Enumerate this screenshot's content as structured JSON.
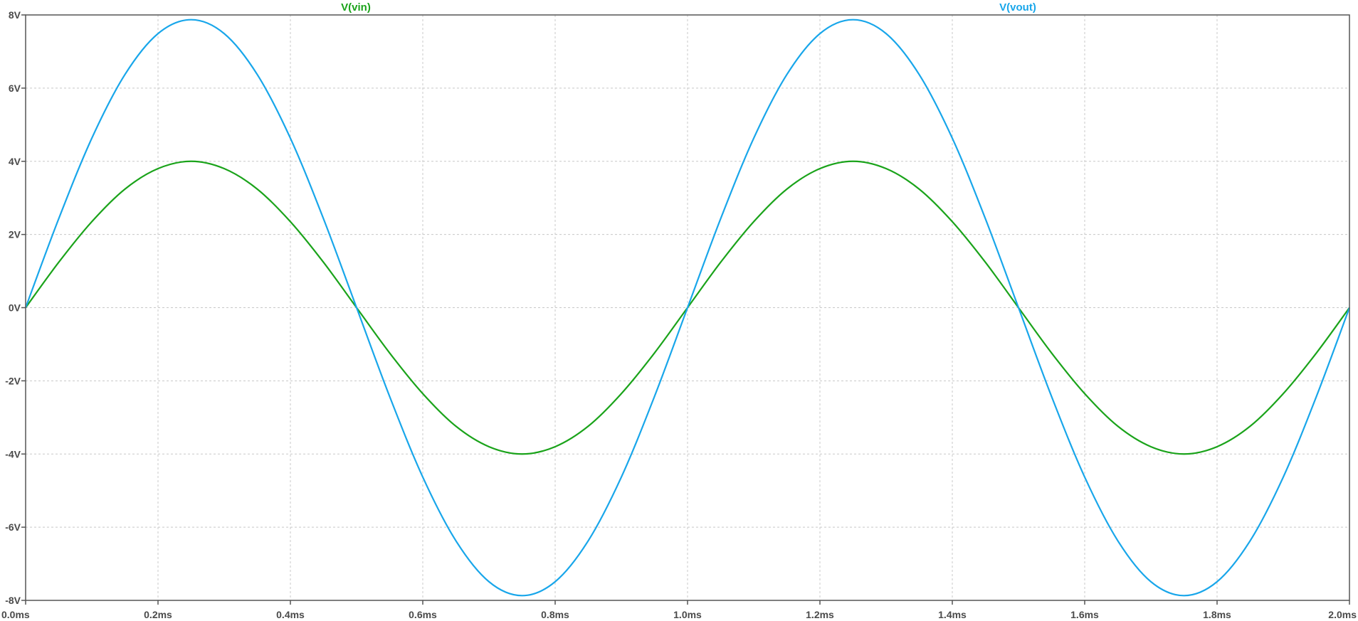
{
  "chart_data": {
    "type": "line",
    "title": "",
    "xlabel": "",
    "ylabel": "",
    "x_unit": "ms",
    "y_unit": "V",
    "xlim": [
      0.0,
      2.0
    ],
    "ylim": [
      -8,
      8
    ],
    "x_ticks": [
      {
        "value": 0.0,
        "label": "0.0ms"
      },
      {
        "value": 0.2,
        "label": "0.2ms"
      },
      {
        "value": 0.4,
        "label": "0.4ms"
      },
      {
        "value": 0.6,
        "label": "0.6ms"
      },
      {
        "value": 0.8,
        "label": "0.8ms"
      },
      {
        "value": 1.0,
        "label": "1.0ms"
      },
      {
        "value": 1.2,
        "label": "1.2ms"
      },
      {
        "value": 1.4,
        "label": "1.4ms"
      },
      {
        "value": 1.6,
        "label": "1.6ms"
      },
      {
        "value": 1.8,
        "label": "1.8ms"
      },
      {
        "value": 2.0,
        "label": "2.0ms"
      }
    ],
    "y_ticks": [
      {
        "value": 8,
        "label": "8V"
      },
      {
        "value": 6,
        "label": "6V"
      },
      {
        "value": 4,
        "label": "4V"
      },
      {
        "value": 2,
        "label": "2V"
      },
      {
        "value": 0,
        "label": "0V"
      },
      {
        "value": -2,
        "label": "-2V"
      },
      {
        "value": -4,
        "label": "-4V"
      },
      {
        "value": -6,
        "label": "-6V"
      },
      {
        "value": -8,
        "label": "-8V"
      }
    ],
    "grid": true,
    "legend": "top",
    "series": [
      {
        "name": "V(vin)",
        "color": "#1aa31a",
        "x": [
          0.0,
          0.05,
          0.1,
          0.15,
          0.2,
          0.25,
          0.3,
          0.35,
          0.4,
          0.45,
          0.5,
          0.55,
          0.6,
          0.65,
          0.7,
          0.75,
          0.8,
          0.85,
          0.9,
          0.95,
          1.0,
          1.05,
          1.1,
          1.15,
          1.2,
          1.25,
          1.3,
          1.35,
          1.4,
          1.45,
          1.5,
          1.55,
          1.6,
          1.65,
          1.7,
          1.75,
          1.8,
          1.85,
          1.9,
          1.95,
          2.0
        ],
        "y": [
          0.0,
          1.24,
          2.35,
          3.24,
          3.8,
          4.0,
          3.8,
          3.24,
          2.35,
          1.24,
          0.0,
          -1.24,
          -2.35,
          -3.24,
          -3.8,
          -4.0,
          -3.8,
          -3.24,
          -2.35,
          -1.24,
          0.0,
          1.24,
          2.35,
          3.24,
          3.8,
          4.0,
          3.8,
          3.24,
          2.35,
          1.24,
          0.0,
          -1.24,
          -2.35,
          -3.24,
          -3.8,
          -4.0,
          -3.8,
          -3.24,
          -2.35,
          -1.24,
          0.0
        ]
      },
      {
        "name": "V(vout)",
        "color": "#18a6ea",
        "x": [
          0.0,
          0.05,
          0.1,
          0.15,
          0.2,
          0.25,
          0.3,
          0.35,
          0.4,
          0.45,
          0.5,
          0.55,
          0.6,
          0.65,
          0.7,
          0.75,
          0.8,
          0.85,
          0.9,
          0.95,
          1.0,
          1.05,
          1.1,
          1.15,
          1.2,
          1.25,
          1.3,
          1.35,
          1.4,
          1.45,
          1.5,
          1.55,
          1.6,
          1.65,
          1.7,
          1.75,
          1.8,
          1.85,
          1.9,
          1.95,
          2.0
        ],
        "y": [
          0.0,
          2.43,
          4.63,
          6.37,
          7.49,
          7.87,
          7.49,
          6.37,
          4.63,
          2.43,
          0.0,
          -2.43,
          -4.63,
          -6.37,
          -7.49,
          -7.87,
          -7.49,
          -6.37,
          -4.63,
          -2.43,
          0.0,
          2.43,
          4.63,
          6.37,
          7.49,
          7.87,
          7.49,
          6.37,
          4.63,
          2.43,
          0.0,
          -2.43,
          -4.63,
          -6.37,
          -7.49,
          -7.87,
          -7.49,
          -6.37,
          -4.63,
          -2.43,
          0.0
        ]
      }
    ]
  }
}
